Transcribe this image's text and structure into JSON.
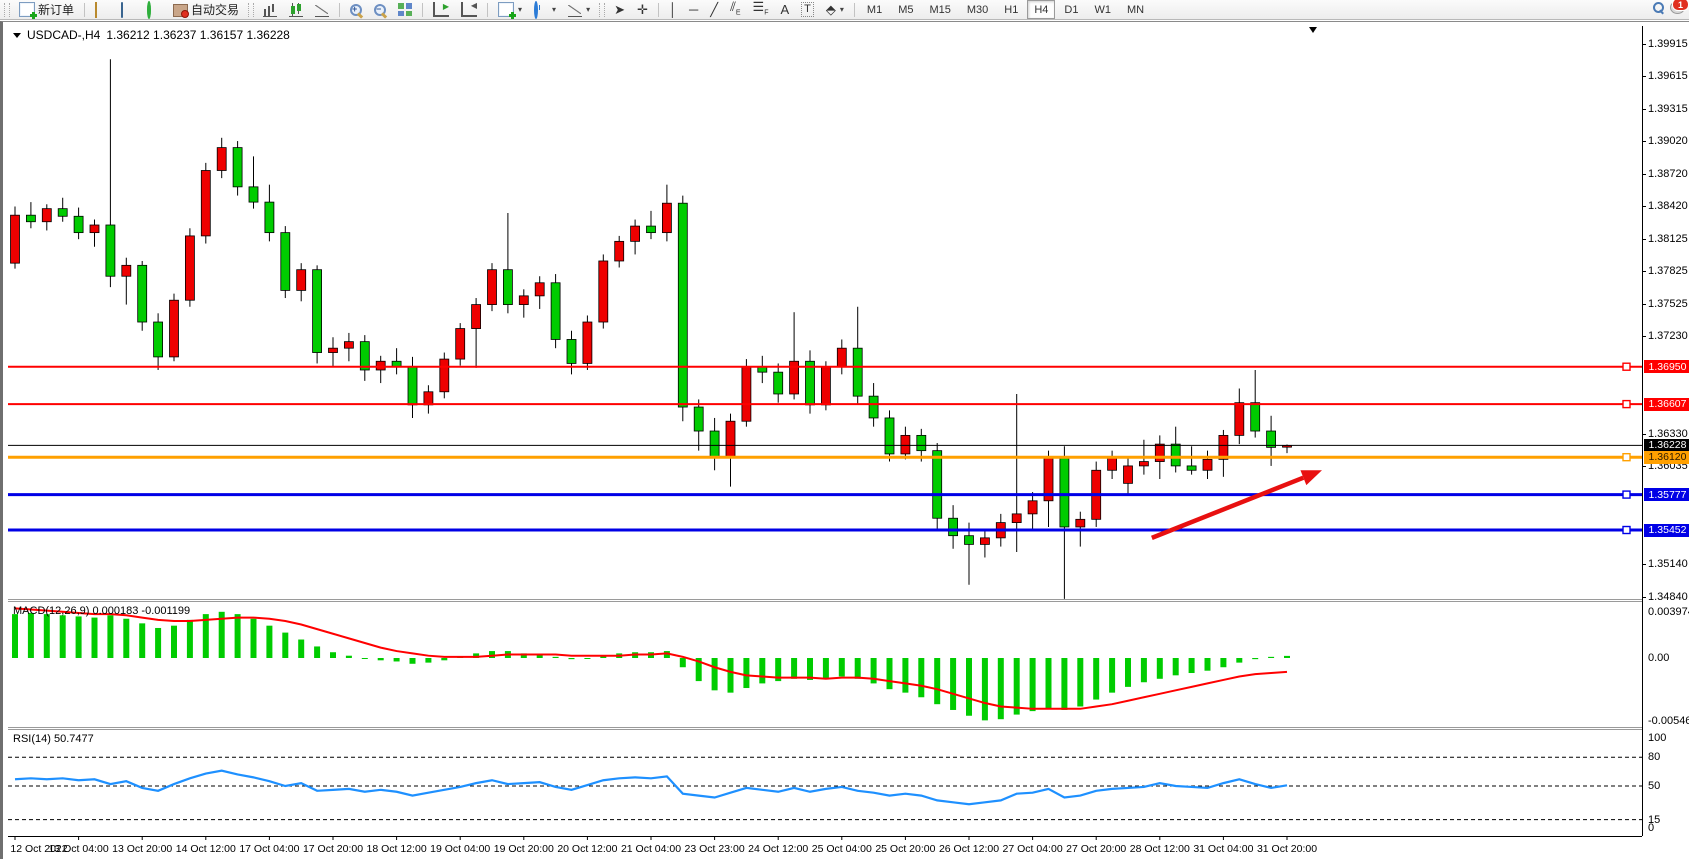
{
  "toolbar": {
    "new_order_label": "新订单",
    "autotrade_label": "自动交易",
    "timeframes": [
      "M1",
      "M5",
      "M15",
      "M30",
      "H1",
      "H4",
      "D1",
      "W1",
      "MN"
    ],
    "active_timeframe": "H4",
    "notification_count": "1",
    "text_tool_label": "A",
    "label_tool_label": "T"
  },
  "chart": {
    "symbol": "USDCAD-,H4",
    "ohlc_text": "1.36212 1.36237 1.36157 1.36228"
  },
  "macd_pane": {
    "label": "MACD(12,26,9)",
    "values_text": "0.000183 -0.001199"
  },
  "rsi_pane": {
    "label": "RSI(14)",
    "value_text": "50.7477"
  },
  "chart_data": {
    "type": "candlestick",
    "title": "USDCAD-,H4",
    "colors": {
      "up": "#EE0000",
      "down": "#00CC00",
      "wick": "#000000",
      "macd_hist": "#00CC00",
      "macd_signal": "#FF0000",
      "rsi_line": "#1E90FF",
      "arrow": "#E81010"
    },
    "price_axis_ticks": [
      1.39915,
      1.39615,
      1.39315,
      1.3902,
      1.3872,
      1.3842,
      1.38125,
      1.37825,
      1.37525,
      1.3723,
      1.3633,
      1.36035,
      1.3514,
      1.3484
    ],
    "price_tick_labels": [
      "1.39915",
      "1.39615",
      "1.39315",
      "1.39020",
      "1.38720",
      "1.38420",
      "1.38125",
      "1.37825",
      "1.37525",
      "1.37230",
      "1.36330",
      "1.36035",
      "1.35140",
      "1.34840"
    ],
    "hlines": [
      {
        "price": 1.3695,
        "label": "1.36950",
        "color": "#FF0000",
        "width": 2,
        "text": "#FFFFFF",
        "marker": true
      },
      {
        "price": 1.36607,
        "label": "1.36607",
        "color": "#FF0000",
        "width": 2,
        "text": "#FFFFFF",
        "marker": true
      },
      {
        "price": 1.36228,
        "label": "1.36228",
        "color": "#000000",
        "width": 1,
        "text": "#FFFFFF",
        "marker": false
      },
      {
        "price": 1.3612,
        "label": "1.36120",
        "color": "#FFA000",
        "width": 3,
        "text": "#2a1a00",
        "marker": true
      },
      {
        "price": 1.35777,
        "label": "1.35777",
        "color": "#0000E6",
        "width": 3,
        "text": "#FFFFFF",
        "marker": true
      },
      {
        "price": 1.35452,
        "label": "1.35452",
        "color": "#0000E6",
        "width": 3,
        "text": "#FFFFFF",
        "marker": true
      }
    ],
    "time_labels": [
      "12 Oct 2022",
      "13 Oct 04:00",
      "13 Oct 20:00",
      "14 Oct 12:00",
      "17 Oct 04:00",
      "17 Oct 20:00",
      "18 Oct 12:00",
      "19 Oct 04:00",
      "19 Oct 20:00",
      "20 Oct 12:00",
      "21 Oct 04:00",
      "23 Oct 23:00",
      "24 Oct 12:00",
      "25 Oct 04:00",
      "25 Oct 20:00",
      "26 Oct 12:00",
      "27 Oct 04:00",
      "27 Oct 20:00",
      "28 Oct 12:00",
      "31 Oct 04:00",
      "31 Oct 20:00"
    ],
    "candles": [
      [
        1.379,
        1.3842,
        1.3785,
        1.3834
      ],
      [
        1.3834,
        1.3846,
        1.3822,
        1.3828
      ],
      [
        1.3828,
        1.3844,
        1.382,
        1.384
      ],
      [
        1.384,
        1.385,
        1.3828,
        1.3833
      ],
      [
        1.3833,
        1.3841,
        1.3812,
        1.3818
      ],
      [
        1.3818,
        1.383,
        1.3805,
        1.3825
      ],
      [
        1.3825,
        1.3977,
        1.3768,
        1.3778
      ],
      [
        1.3778,
        1.3795,
        1.3752,
        1.3788
      ],
      [
        1.3788,
        1.3792,
        1.3728,
        1.3736
      ],
      [
        1.3736,
        1.3744,
        1.3692,
        1.3704
      ],
      [
        1.3704,
        1.3762,
        1.37,
        1.3756
      ],
      [
        1.3756,
        1.3822,
        1.375,
        1.3815
      ],
      [
        1.3815,
        1.3882,
        1.3808,
        1.3875
      ],
      [
        1.3875,
        1.3905,
        1.3868,
        1.3896
      ],
      [
        1.3896,
        1.3902,
        1.3852,
        1.386
      ],
      [
        1.386,
        1.3888,
        1.384,
        1.3846
      ],
      [
        1.3846,
        1.3862,
        1.381,
        1.3818
      ],
      [
        1.3818,
        1.3824,
        1.3758,
        1.3765
      ],
      [
        1.3765,
        1.379,
        1.3755,
        1.3784
      ],
      [
        1.3784,
        1.3788,
        1.3698,
        1.3708
      ],
      [
        1.3708,
        1.3722,
        1.3695,
        1.3712
      ],
      [
        1.3712,
        1.3726,
        1.37,
        1.3718
      ],
      [
        1.3718,
        1.3724,
        1.3682,
        1.3692
      ],
      [
        1.3692,
        1.3705,
        1.368,
        1.37
      ],
      [
        1.37,
        1.3712,
        1.3688,
        1.3695
      ],
      [
        1.3695,
        1.3704,
        1.3648,
        1.366
      ],
      [
        1.366,
        1.3678,
        1.3652,
        1.3672
      ],
      [
        1.3672,
        1.3708,
        1.3666,
        1.3702
      ],
      [
        1.3702,
        1.3735,
        1.3696,
        1.373
      ],
      [
        1.373,
        1.3758,
        1.3694,
        1.3752
      ],
      [
        1.3752,
        1.379,
        1.3746,
        1.3784
      ],
      [
        1.3784,
        1.3836,
        1.3744,
        1.3752
      ],
      [
        1.3752,
        1.3766,
        1.374,
        1.376
      ],
      [
        1.376,
        1.3778,
        1.3748,
        1.3772
      ],
      [
        1.3772,
        1.378,
        1.3712,
        1.372
      ],
      [
        1.372,
        1.3728,
        1.3688,
        1.3698
      ],
      [
        1.3698,
        1.3742,
        1.3692,
        1.3736
      ],
      [
        1.3736,
        1.3798,
        1.373,
        1.3792
      ],
      [
        1.3792,
        1.3815,
        1.3786,
        1.381
      ],
      [
        1.381,
        1.383,
        1.3798,
        1.3824
      ],
      [
        1.3824,
        1.3838,
        1.3812,
        1.3818
      ],
      [
        1.3818,
        1.3862,
        1.381,
        1.3845
      ],
      [
        1.3845,
        1.3852,
        1.3645,
        1.3658
      ],
      [
        1.3658,
        1.3665,
        1.3618,
        1.3636
      ],
      [
        1.3636,
        1.3648,
        1.36,
        1.3612
      ],
      [
        1.3612,
        1.3652,
        1.3585,
        1.3645
      ],
      [
        1.3645,
        1.3702,
        1.364,
        1.3695
      ],
      [
        1.3695,
        1.3705,
        1.368,
        1.369
      ],
      [
        1.369,
        1.3698,
        1.3662,
        1.367
      ],
      [
        1.367,
        1.3745,
        1.3665,
        1.37
      ],
      [
        1.37,
        1.371,
        1.3652,
        1.366
      ],
      [
        1.366,
        1.37,
        1.3655,
        1.3695
      ],
      [
        1.3695,
        1.372,
        1.3688,
        1.3712
      ],
      [
        1.3712,
        1.375,
        1.366,
        1.3668
      ],
      [
        1.3668,
        1.368,
        1.364,
        1.3648
      ],
      [
        1.3648,
        1.3655,
        1.3608,
        1.3615
      ],
      [
        1.3615,
        1.364,
        1.361,
        1.3632
      ],
      [
        1.3632,
        1.3638,
        1.3608,
        1.3618
      ],
      [
        1.3618,
        1.3625,
        1.3545,
        1.3556
      ],
      [
        1.3556,
        1.3568,
        1.3528,
        1.354
      ],
      [
        1.354,
        1.3552,
        1.3495,
        1.3532
      ],
      [
        1.3532,
        1.3545,
        1.352,
        1.3538
      ],
      [
        1.3538,
        1.356,
        1.353,
        1.3552
      ],
      [
        1.3552,
        1.367,
        1.3525,
        1.356
      ],
      [
        1.356,
        1.358,
        1.3545,
        1.3572
      ],
      [
        1.3572,
        1.3618,
        1.3548,
        1.3612
      ],
      [
        1.3612,
        1.3622,
        1.3482,
        1.3548
      ],
      [
        1.3548,
        1.3562,
        1.353,
        1.3555
      ],
      [
        1.3555,
        1.3608,
        1.3548,
        1.36
      ],
      [
        1.36,
        1.3618,
        1.3592,
        1.3612
      ],
      [
        1.3588,
        1.3612,
        1.3578,
        1.3604
      ],
      [
        1.3604,
        1.3628,
        1.3596,
        1.3608
      ],
      [
        1.3608,
        1.3632,
        1.3592,
        1.3624
      ],
      [
        1.3624,
        1.364,
        1.3598,
        1.3604
      ],
      [
        1.3604,
        1.3622,
        1.3596,
        1.36
      ],
      [
        1.36,
        1.3618,
        1.3592,
        1.361
      ],
      [
        1.361,
        1.3637,
        1.3594,
        1.3632
      ],
      [
        1.3632,
        1.3675,
        1.3624,
        1.3662
      ],
      [
        1.3662,
        1.3692,
        1.363,
        1.3636
      ],
      [
        1.3636,
        1.365,
        1.3604,
        1.3621
      ],
      [
        1.36212,
        1.36237,
        1.36157,
        1.36228
      ]
    ],
    "macd": {
      "label": "MACD(12,26,9)",
      "main_value": 0.000183,
      "signal_value": -0.001199,
      "axis_labels": [
        "0.003974",
        "0.00",
        "-0.005465"
      ],
      "axis_values": [
        0.003974,
        0.0,
        -0.005465
      ],
      "histogram": [
        0.0038,
        0.0039,
        0.0038,
        0.0037,
        0.0036,
        0.0035,
        0.0037,
        0.0034,
        0.003,
        0.0026,
        0.0028,
        0.0033,
        0.0038,
        0.004,
        0.0038,
        0.0034,
        0.0028,
        0.0022,
        0.0016,
        0.001,
        0.0005,
        0.0002,
        0.0,
        -0.0002,
        -0.0003,
        -0.0005,
        -0.0004,
        -0.0002,
        0.0001,
        0.0004,
        0.0006,
        0.0006,
        0.0004,
        0.0003,
        0.0001,
        -0.0001,
        0.0,
        0.0002,
        0.0004,
        0.0005,
        0.0005,
        0.0006,
        -0.0008,
        -0.002,
        -0.0028,
        -0.003,
        -0.0026,
        -0.0022,
        -0.002,
        -0.0018,
        -0.0019,
        -0.0018,
        -0.0016,
        -0.0018,
        -0.0022,
        -0.0027,
        -0.003,
        -0.0034,
        -0.004,
        -0.0045,
        -0.005,
        -0.0054,
        -0.0053,
        -0.0049,
        -0.0046,
        -0.0044,
        -0.0045,
        -0.0042,
        -0.0036,
        -0.003,
        -0.0025,
        -0.0021,
        -0.0018,
        -0.0015,
        -0.0013,
        -0.0011,
        -0.0008,
        -0.0004,
        -0.0001,
        0.0001,
        0.000183
      ],
      "signal": [
        0.0043,
        0.0042,
        0.0041,
        0.004,
        0.0039,
        0.0038,
        0.0038,
        0.0037,
        0.0035,
        0.0033,
        0.0032,
        0.0032,
        0.0033,
        0.0034,
        0.0035,
        0.0035,
        0.0034,
        0.0032,
        0.0029,
        0.0025,
        0.0021,
        0.0017,
        0.0013,
        0.0009,
        0.0006,
        0.0004,
        0.0002,
        0.0001,
        0.0001,
        0.0001,
        0.0002,
        0.0003,
        0.0003,
        0.0003,
        0.0003,
        0.0002,
        0.0002,
        0.0002,
        0.0002,
        0.0003,
        0.0003,
        0.0004,
        0.0001,
        -0.0003,
        -0.0008,
        -0.0012,
        -0.0015,
        -0.0016,
        -0.0017,
        -0.0017,
        -0.0017,
        -0.0018,
        -0.0017,
        -0.0017,
        -0.0018,
        -0.002,
        -0.0022,
        -0.0024,
        -0.0027,
        -0.0031,
        -0.0035,
        -0.0039,
        -0.0042,
        -0.0043,
        -0.0044,
        -0.0044,
        -0.0044,
        -0.0044,
        -0.0042,
        -0.004,
        -0.0037,
        -0.0034,
        -0.0031,
        -0.0028,
        -0.0025,
        -0.0022,
        -0.0019,
        -0.0016,
        -0.0014,
        -0.0013,
        -0.001199
      ]
    },
    "rsi": {
      "label": "RSI(14)",
      "current_value": 50.7477,
      "levels": [
        80,
        50,
        15
      ],
      "axis_labels": [
        "100",
        "80",
        "50",
        "15",
        "0"
      ],
      "axis_values": [
        100,
        80,
        50,
        15,
        0
      ],
      "values": [
        57,
        58,
        57,
        58,
        56,
        57,
        52,
        55,
        48,
        45,
        52,
        58,
        63,
        66,
        62,
        59,
        55,
        50,
        53,
        45,
        46,
        47,
        44,
        46,
        44,
        40,
        43,
        46,
        49,
        53,
        56,
        52,
        53,
        54,
        49,
        46,
        51,
        56,
        58,
        59,
        58,
        60,
        42,
        40,
        38,
        43,
        48,
        46,
        44,
        48,
        44,
        47,
        49,
        45,
        43,
        40,
        42,
        40,
        35,
        33,
        31,
        33,
        35,
        42,
        43,
        47,
        38,
        40,
        45,
        47,
        48,
        49,
        53,
        50,
        49,
        48,
        53,
        57,
        52,
        48,
        50.7477
      ]
    },
    "arrow_annotation": {
      "from_index": 71.5,
      "from_price": 1.3538,
      "to_index": 82.2,
      "to_price": 1.36
    }
  }
}
